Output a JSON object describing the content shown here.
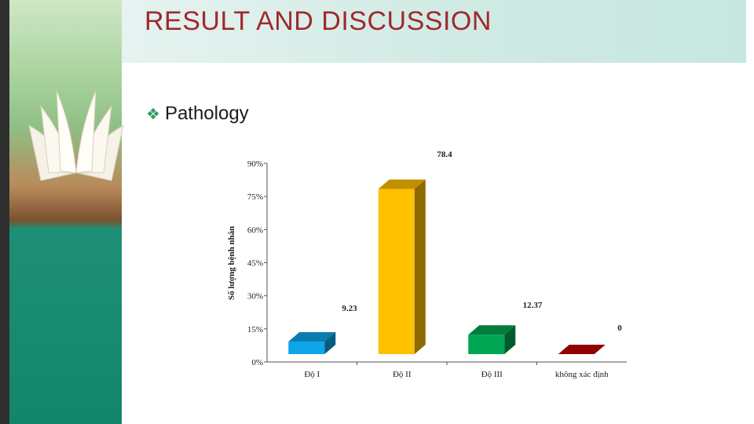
{
  "slide": {
    "title": "RESULT AND DISCUSSION",
    "bullet": "Pathology"
  },
  "chart_data": {
    "type": "bar",
    "categories": [
      "Độ I",
      "Độ II",
      "Độ III",
      "không xác định"
    ],
    "values": [
      9.23,
      78.4,
      12.37,
      0
    ],
    "data_labels": [
      "9.23",
      "78.4",
      "12.37",
      "0"
    ],
    "colors": [
      "#0ea5e9",
      "#ffc000",
      "#00a651",
      "#c00000"
    ],
    "ylabel": "Số lượng bệnh nhân",
    "yticks": [
      "0%",
      "15%",
      "30%",
      "45%",
      "60%",
      "75%",
      "90%"
    ],
    "ylim": [
      0,
      90
    ],
    "grid": false,
    "three_d": true
  }
}
